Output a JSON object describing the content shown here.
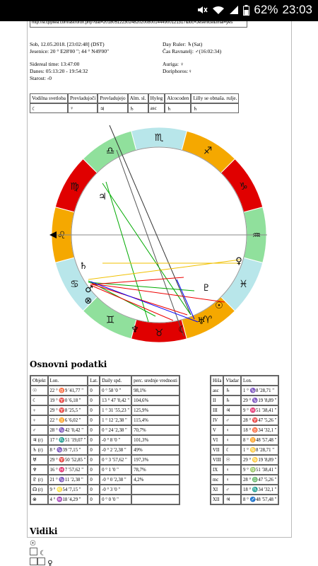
{
  "status": {
    "battery": "62%",
    "time": "23:03"
  },
  "url": "http://a.cpptea.com/astrofox.php?dat=20180512230248202008001444900121317&loc=Jesenice&final=yes",
  "header": {
    "date_line": "Sob, 12.05.2018. [23:02:48] (DST)",
    "location_line": "Jesenice: 20 ° E28'00 \"; 44 ° N49'00\"",
    "day_ruler": "Day Ruler: ♄(Sat)",
    "ravnatelj": "Čas Ravnatelj: ♂(16:02:34)",
    "sidereal": "Sidereal time: 13:47:00",
    "danes": "Danes: 05:13:20 - 19:54:32",
    "starost": "Starost: -0",
    "auriga": "Auriga: ♀",
    "doriphoros": "Doriphoros:♀"
  },
  "props_table": {
    "headers": [
      "Vodilna svetloba",
      "Prevladujoči",
      "Prevladujejo",
      "Alm. sl.",
      "Hyleg",
      "Alcocoden",
      "Lilly se obnaša. rulje."
    ],
    "values": [
      "☾",
      "♀",
      "♃",
      "♄",
      "asc",
      "♄",
      "♄"
    ]
  },
  "chart": {
    "signs": [
      "♎",
      "♍",
      "♌",
      "♋",
      "♊",
      "♉",
      "♈",
      "♓",
      "♒",
      "♑",
      "♐",
      "♏"
    ],
    "planets": [
      "♃",
      "♄",
      "♀",
      "♂",
      "⊗",
      "♆",
      "☾",
      "♅",
      "☉",
      "♇"
    ]
  },
  "osnovni": {
    "title": "Osnovni podatki",
    "headers": [
      "Objekt",
      "Lon.",
      "Lat.",
      "Daily spd.",
      "perc. srednje vrednosti"
    ],
    "rows": [
      [
        "☉",
        "22 ° ♉9 '41,77 \"",
        "0",
        "0 ° 58 '0 \"",
        "98,1%"
      ],
      [
        "☾",
        "19 ° ♈0 '6,18 \"",
        "0",
        "13 ° 47 '0,42 \"",
        "104,6%"
      ],
      [
        "♀",
        "29 ° ♈8 '25,5 \"",
        "0",
        "1 ° 31 '55,23 \"",
        "125,9%"
      ],
      [
        "♀",
        "22 ° ♊6 '6,02 \"",
        "0",
        "1 ° 12 '2,38 \"",
        "115,4%"
      ],
      [
        "♂",
        "28 ° ♑42 '0,42 \"",
        "0",
        "0 ° 24 '2,38 \"",
        "70,7%"
      ],
      [
        "♃ (r)",
        "17 ° ♏51 '19,07 \"",
        "0",
        "-0 ° 8 '0 \"",
        "101,3%"
      ],
      [
        "♄ (r)",
        "8 ° ♑39 '7,15 \"",
        "0",
        "-0 ° 2 '2,38 \"",
        "49%"
      ],
      [
        "♅",
        "29 ° ♈50 '52,85 \"",
        "0",
        "0 ° 3 '57,62 \"",
        "197,3%"
      ],
      [
        "♆",
        "16 ° ♓7 '57,62 \"",
        "0",
        "0 ° 1 '0 \"",
        "78,7%"
      ],
      [
        "♇ (r)",
        "21 ° ♑11 '2,38 \"",
        "0",
        "-0 ° 0 '2,38 \"",
        "4,2%"
      ],
      [
        "☊ (r)",
        "9 ° ♌54 '7,15 \"",
        "0",
        "-0 ° 3 '0 \"",
        ""
      ],
      [
        "⊗",
        "4 ° ♒18 '4,29 \"",
        "0",
        "0 ° 0 '0 \"",
        ""
      ]
    ]
  },
  "houses": {
    "headers": [
      "Hiša",
      "Vladar",
      "Lon."
    ],
    "rows": [
      [
        "asc",
        "♄",
        "1 ° ♑8 '28,71 \""
      ],
      [
        "II",
        "♄",
        "29 ° ♑19 '8,89 \""
      ],
      [
        "III",
        "♃",
        "9 ° ♓51 '38,41 \""
      ],
      [
        "IV",
        "♂",
        "28 ° ♈47 '5,26 \""
      ],
      [
        "V",
        "♀",
        "18 ° ♉34 '32,1 \""
      ],
      [
        "VI",
        "♀",
        "8 ° ♊48 '57,48 \""
      ],
      [
        "VII",
        "☾",
        "1 ° ♋8 '28,71 \""
      ],
      [
        "VIII",
        "☉",
        "29 ° ♋19 '8,89 \""
      ],
      [
        "IX",
        "♀",
        "9 ° ♍51 '38,41 \""
      ],
      [
        "mc",
        "♀",
        "28 ° ♎47 '5,26 \""
      ],
      [
        "XI",
        "♂",
        "18 ° ♏34 '32,1 \""
      ],
      [
        "XII",
        "♃",
        "8 ° ♐48 '57,48 \""
      ]
    ]
  },
  "vidiki": {
    "title": "Vidiki",
    "row1": [
      "☉"
    ],
    "row2": [
      "☾"
    ],
    "row3": [
      "♀"
    ]
  }
}
